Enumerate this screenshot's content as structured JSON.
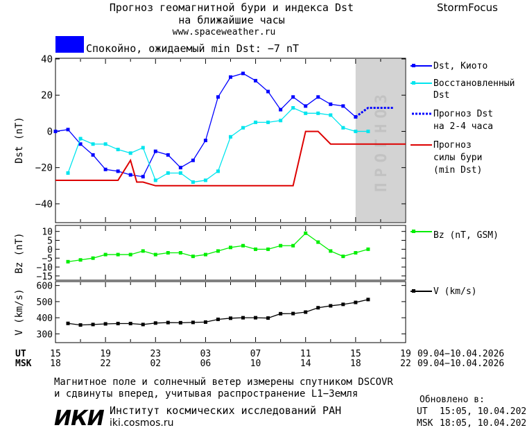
{
  "header": {
    "title_line1": "Прогноз геомагнитной бури и индекса Dst",
    "title_line2": "на ближайшие часы",
    "site": "www.spaceweather.ru",
    "brand": "StormFocus"
  },
  "status": {
    "color": "#0000ff",
    "text": "Спокойно, ожидаемый min Dst: −7 nT"
  },
  "colors": {
    "dst": "#0000ff",
    "restored": "#00e5ee",
    "forecast_dst": "#0000ff",
    "storm_forecast": "#dd0000",
    "bz": "#00ee00",
    "v": "#000000",
    "forecast_band": "#d3d3d3"
  },
  "chart_data": [
    {
      "type": "line",
      "panel": "dst",
      "ylabel": "Dst (nT)",
      "ylim": [
        -50,
        40
      ],
      "yticks": [
        40,
        20,
        0,
        -20,
        -40
      ],
      "x_unit": "hours since 15 UT 09.04",
      "xlim": [
        0,
        28
      ],
      "forecast_band": {
        "label": "ПРОГНОЗ",
        "x_range": [
          24,
          28
        ]
      },
      "series": [
        {
          "name": "Dst, Киото",
          "style": "line-markers",
          "x": [
            0,
            1,
            2,
            3,
            4,
            5,
            6,
            7,
            8,
            9,
            10,
            11,
            12,
            13,
            14,
            15,
            16,
            17,
            18,
            19,
            20,
            21,
            22,
            23,
            24
          ],
          "values": [
            0,
            1,
            -7,
            -13,
            -21,
            -22,
            -24,
            -25,
            -11,
            -13,
            -20,
            -16,
            -5,
            19,
            30,
            32,
            28,
            22,
            12,
            19,
            14,
            19,
            15,
            14,
            8
          ]
        },
        {
          "name": "Восстановленный Dst",
          "style": "line-markers",
          "x": [
            1,
            2,
            3,
            4,
            5,
            6,
            7,
            8,
            9,
            10,
            11,
            12,
            13,
            14,
            15,
            16,
            17,
            18,
            19,
            20,
            21,
            22,
            23,
            24,
            25
          ],
          "values": [
            -23,
            -4,
            -7,
            -7,
            -10,
            -12,
            -9,
            -27,
            -23,
            -23,
            -28,
            -27,
            -22,
            -3,
            2,
            5,
            5,
            6,
            13,
            10,
            10,
            9,
            2,
            0,
            0
          ]
        },
        {
          "name": "Прогноз Dst на 2-4 часа",
          "style": "dotted",
          "x": [
            24,
            25,
            26,
            27
          ],
          "values": [
            8,
            13,
            13,
            13
          ]
        },
        {
          "name": "Прогноз силы бури (min Dst)",
          "style": "step",
          "x": [
            0,
            5,
            6,
            6.5,
            7,
            8,
            10,
            19,
            20,
            21,
            22,
            28
          ],
          "values": [
            -27,
            -27,
            -16,
            -28,
            -28,
            -30,
            -30,
            -30,
            0,
            0,
            -7,
            -7
          ]
        }
      ]
    },
    {
      "type": "line",
      "panel": "bz",
      "ylabel": "Bz (nT)",
      "ylim": [
        -17,
        13
      ],
      "yticks": [
        10,
        5,
        0,
        -5,
        -10,
        -15
      ],
      "series": [
        {
          "name": "Bz (nT, GSM)",
          "x": [
            1,
            2,
            3,
            4,
            5,
            6,
            7,
            8,
            9,
            10,
            11,
            12,
            13,
            14,
            15,
            16,
            17,
            18,
            19,
            20,
            21,
            22,
            23,
            24,
            25
          ],
          "values": [
            -7,
            -6,
            -5,
            -3,
            -3,
            -3,
            -1,
            -3,
            -2,
            -2,
            -4,
            -3,
            -1,
            1,
            2,
            0,
            0,
            2,
            2,
            9,
            4,
            -1,
            -4,
            -2,
            0
          ]
        }
      ]
    },
    {
      "type": "line",
      "panel": "v",
      "ylabel": "V (km/s)",
      "ylim": [
        250,
        620
      ],
      "yticks": [
        600,
        500,
        400,
        300
      ],
      "series": [
        {
          "name": "V (km/s)",
          "x": [
            1,
            2,
            3,
            4,
            5,
            6,
            7,
            8,
            9,
            10,
            11,
            12,
            13,
            14,
            15,
            16,
            17,
            18,
            19,
            20,
            21,
            22,
            23,
            24,
            25
          ],
          "values": [
            365,
            355,
            358,
            362,
            364,
            364,
            358,
            367,
            370,
            369,
            371,
            373,
            390,
            397,
            400,
            400,
            398,
            425,
            426,
            435,
            462,
            474,
            483,
            495,
            513
          ]
        }
      ]
    }
  ],
  "time_axis": {
    "ut_label": "UT",
    "msk_label": "MSK",
    "ut_ticks": [
      "15",
      "19",
      "23",
      "03",
      "07",
      "11",
      "15",
      "19"
    ],
    "msk_ticks": [
      "18",
      "22",
      "02",
      "06",
      "10",
      "14",
      "18",
      "22"
    ],
    "ut_range": "09.04−10.04.2026",
    "msk_range": "09.04−10.04.2026"
  },
  "legend": {
    "dst": "Dst, Киото",
    "restored_line1": "Восстановленный",
    "restored_line2": "Dst",
    "forecast_line1": "Прогноз Dst",
    "forecast_line2": "на 2-4 часа",
    "storm_line1": "Прогноз",
    "storm_line2": "силы бури",
    "storm_line3": "(min Dst)",
    "bz": "Bz (nT, GSM)",
    "v": "V (km/s)"
  },
  "footer": {
    "note_line1": "Магнитное поле и солнечный ветер измерены спутником DSCOVR",
    "note_line2": "и сдвинуты вперед, учитывая распространение L1−Земля",
    "logo": "ИКИ",
    "institute": "Институт космических исследований РАН",
    "institute_site": "iki.cosmos.ru",
    "updated_label": "Обновлено в:",
    "updated_ut_label": "UT",
    "updated_ut": "15:05, 10.04.2026",
    "updated_msk_label": "MSK",
    "updated_msk": "18:05, 10.04.2026"
  }
}
